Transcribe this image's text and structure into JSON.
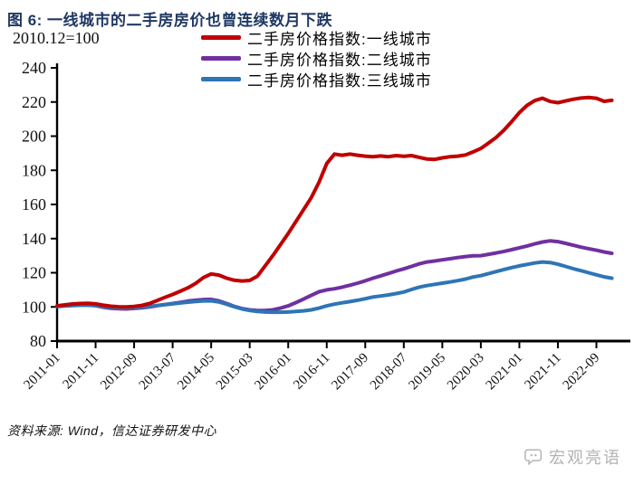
{
  "figure": {
    "title": "图 6: 一线城市的二手房房价也曾连续数月下跌",
    "subtitle": "2010.12=100",
    "source": "资料来源: Wind，信达证券研发中心",
    "watermark": "宏观亮语"
  },
  "colors": {
    "title_navy": "#1f3864",
    "first_tier_red": "#c00000",
    "second_tier_purple": "#7030a0",
    "third_tier_blue": "#2e75b6",
    "axis_black": "#000000",
    "watermark_gray": "#b3b3b3"
  },
  "chart_data": {
    "type": "line",
    "title": "图 6: 一线城市的二手房房价也曾连续数月下跌",
    "subtitle": "2010.12=100",
    "x_start": "2011-01",
    "x_end": "2023-01",
    "x_step_months": 2,
    "x_tick_labels": [
      "2011-01",
      "2011-11",
      "2012-09",
      "2013-07",
      "2014-05",
      "2015-03",
      "2016-01",
      "2016-11",
      "2017-09",
      "2018-07",
      "2019-05",
      "2020-03",
      "2021-01",
      "2021-11",
      "2022-09"
    ],
    "x_tick_month_interval": 10,
    "y_ticks": [
      80,
      100,
      120,
      140,
      160,
      180,
      200,
      220,
      240
    ],
    "ylim": [
      80,
      240
    ],
    "grid": false,
    "legend_position": "top",
    "series": [
      {
        "name": "二手房价格指数:一线城市",
        "color": "#c00000",
        "values": [
          100.6,
          101.2,
          101.7,
          102.0,
          102.1,
          101.8,
          101.0,
          100.4,
          100.1,
          100.0,
          100.3,
          100.9,
          102.0,
          103.8,
          105.6,
          107.3,
          109.2,
          111.2,
          113.8,
          117.2,
          119.3,
          118.6,
          116.8,
          115.6,
          115.2,
          115.5,
          118.0,
          124.0,
          130.0,
          136.5,
          143.0,
          150.0,
          157.0,
          164.0,
          173.0,
          184.0,
          189.5,
          188.8,
          189.5,
          188.8,
          188.3,
          188.0,
          188.4,
          188.0,
          188.6,
          188.2,
          188.6,
          187.6,
          186.6,
          186.4,
          187.3,
          188.0,
          188.3,
          189.0,
          190.8,
          192.8,
          196.0,
          199.3,
          203.5,
          208.5,
          213.8,
          218.0,
          220.8,
          222.2,
          220.3,
          219.6,
          220.6,
          221.6,
          222.3,
          222.6,
          222.2,
          220.4,
          221.0
        ]
      },
      {
        "name": "二手房价格指数:二线城市",
        "color": "#7030a0",
        "values": [
          100.3,
          100.7,
          101.1,
          101.3,
          101.2,
          100.7,
          99.8,
          99.2,
          98.9,
          98.8,
          99.1,
          99.5,
          100.0,
          100.7,
          101.4,
          102.0,
          102.7,
          103.4,
          103.9,
          104.3,
          104.4,
          103.5,
          102.0,
          100.3,
          99.0,
          98.3,
          97.9,
          97.9,
          98.3,
          99.3,
          100.6,
          102.5,
          104.6,
          106.8,
          108.9,
          110.0,
          110.6,
          111.6,
          112.7,
          113.9,
          115.3,
          116.8,
          118.2,
          119.6,
          121.0,
          122.3,
          123.7,
          125.2,
          126.3,
          126.9,
          127.6,
          128.2,
          128.9,
          129.5,
          129.9,
          130.0,
          130.8,
          131.6,
          132.5,
          133.5,
          134.6,
          135.7,
          136.9,
          138.0,
          138.7,
          138.2,
          137.2,
          136.1,
          135.0,
          134.1,
          133.2,
          132.2,
          131.4
        ]
      },
      {
        "name": "二手房价格指数:三线城市",
        "color": "#2e75b6",
        "values": [
          100.2,
          100.5,
          100.8,
          101.0,
          101.0,
          100.8,
          100.2,
          99.7,
          99.4,
          99.4,
          99.6,
          99.9,
          100.3,
          100.8,
          101.3,
          101.8,
          102.3,
          102.8,
          103.2,
          103.5,
          103.6,
          102.9,
          101.6,
          100.1,
          98.8,
          97.9,
          97.3,
          97.0,
          96.9,
          96.9,
          97.0,
          97.3,
          97.7,
          98.3,
          99.3,
          100.6,
          101.6,
          102.4,
          103.1,
          103.9,
          104.8,
          105.8,
          106.4,
          107.0,
          107.8,
          108.7,
          110.2,
          111.6,
          112.5,
          113.2,
          113.9,
          114.6,
          115.4,
          116.3,
          117.5,
          118.3,
          119.5,
          120.7,
          121.9,
          123.0,
          124.0,
          124.9,
          125.7,
          126.3,
          126.0,
          125.0,
          123.7,
          122.4,
          121.2,
          120.0,
          118.8,
          117.6,
          116.8
        ]
      }
    ]
  }
}
